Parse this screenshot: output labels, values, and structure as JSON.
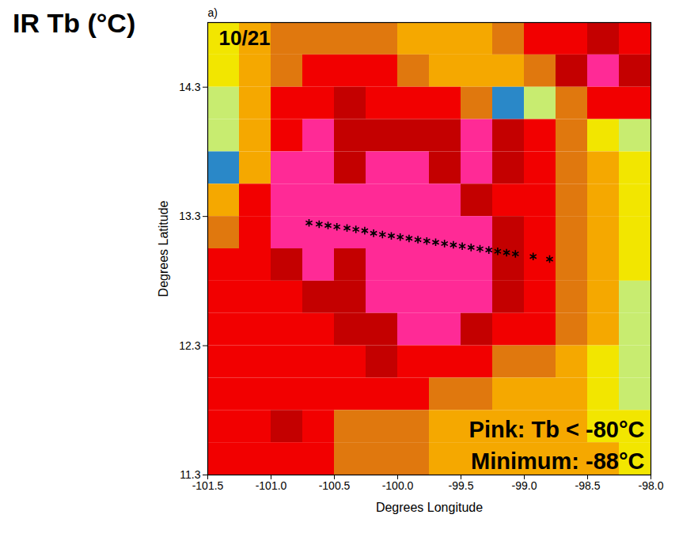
{
  "chart_data": {
    "type": "heatmap",
    "title": "IR Tb (°C)",
    "panel_label": "a)",
    "date_label": "10/21",
    "xlabel": "Degrees Longitude",
    "ylabel": "Degrees Latitude",
    "xlim": [
      -101.5,
      -98.0
    ],
    "ylim": [
      11.3,
      14.8
    ],
    "xticks": [
      -101.5,
      {
        "value": -101.0,
        "label": "-101.0"
      },
      -100.5,
      {
        "value": -100.0,
        "label": "-100.0"
      },
      -99.5,
      {
        "value": -99.0,
        "label": "-99.0"
      },
      -98.5,
      {
        "value": -98.0,
        "label": "-98.0"
      }
    ],
    "yticks": [
      11.3,
      12.3,
      13.3,
      14.3
    ],
    "lon": [
      -101.375,
      -101.125,
      -100.875,
      -100.625,
      -100.375,
      -100.125,
      -99.875,
      -99.625,
      -99.375,
      -99.125,
      -98.875,
      -98.625,
      -98.375,
      -98.125
    ],
    "lat": [
      14.675,
      14.425,
      14.175,
      13.925,
      13.675,
      13.425,
      13.175,
      12.925,
      12.675,
      12.425,
      12.175,
      11.925,
      11.675,
      11.425
    ],
    "tb": [
      [
        -42,
        -48,
        -55,
        -62,
        -62,
        -58,
        -52,
        -50,
        -52,
        -60,
        -66,
        -72,
        -76,
        -72
      ],
      [
        -40,
        -48,
        -56,
        -64,
        -66,
        -64,
        -58,
        -52,
        -50,
        -52,
        -62,
        -80,
        -84,
        -76
      ],
      [
        -32,
        -50,
        -64,
        -72,
        -74,
        -70,
        -68,
        -66,
        -55,
        -22,
        -35,
        -62,
        -66,
        -64
      ],
      [
        -32,
        -52,
        -66,
        -82,
        -78,
        -74,
        -76,
        -76,
        -84,
        -74,
        -64,
        -55,
        -45,
        -35
      ],
      [
        -22,
        -52,
        -81,
        -83,
        -76,
        -82,
        -82,
        -76,
        -83,
        -74,
        -66,
        -56,
        -50,
        -38
      ],
      [
        -50,
        -64,
        -82,
        -86,
        -83,
        -82,
        -86,
        -84,
        -76,
        -70,
        -64,
        -56,
        -48,
        -42
      ],
      [
        -62,
        -68,
        -84,
        -86,
        -84,
        -87,
        -88,
        -85,
        -82,
        -74,
        -66,
        -58,
        -50,
        -38
      ],
      [
        -64,
        -68,
        -76,
        -82,
        -78,
        -84,
        -86,
        -84,
        -82,
        -76,
        -68,
        -60,
        -52,
        -36
      ],
      [
        -66,
        -68,
        -72,
        -76,
        -78,
        -83,
        -85,
        -84,
        -82,
        -74,
        -66,
        -58,
        -50,
        -30
      ],
      [
        -66,
        -64,
        -68,
        -72,
        -74,
        -78,
        -82,
        -83,
        -76,
        -70,
        -64,
        -56,
        -48,
        -34
      ],
      [
        -72,
        -68,
        -66,
        -68,
        -72,
        -74,
        -72,
        -70,
        -68,
        -62,
        -56,
        -50,
        -40,
        -28
      ],
      [
        -68,
        -72,
        -66,
        -64,
        -66,
        -68,
        -66,
        -58,
        -55,
        -52,
        -50,
        -48,
        -40,
        -34
      ],
      [
        -68,
        -66,
        -74,
        -64,
        -62,
        -58,
        -55,
        -52,
        -50,
        -48,
        -50,
        -48,
        -45,
        -40
      ],
      [
        -66,
        -68,
        -70,
        -72,
        -62,
        -58,
        -55,
        -52,
        -50,
        -52,
        -50,
        -48,
        -46,
        -42
      ]
    ],
    "color_thresholds": [
      -80,
      -72,
      -62,
      -54,
      -45,
      -35,
      -25
    ],
    "color_range": [
      "#ff2a96",
      "#c40000",
      "#f20000",
      "#e0780e",
      "#f5a800",
      "#f2e600",
      "#c8ec70",
      "#2a88c8"
    ],
    "track": {
      "lon": [
        -100.7,
        -100.62,
        -100.55,
        -100.48,
        -100.4,
        -100.33,
        -100.26,
        -100.19,
        -100.12,
        -100.05,
        -99.98,
        -99.91,
        -99.84,
        -99.77,
        -99.7,
        -99.63,
        -99.56,
        -99.49,
        -99.42,
        -99.35,
        -99.28,
        -99.21,
        -99.14,
        -99.07,
        -98.93,
        -98.8
      ],
      "lat": [
        13.25,
        13.24,
        13.23,
        13.22,
        13.21,
        13.2,
        13.19,
        13.17,
        13.16,
        13.15,
        13.14,
        13.13,
        13.12,
        13.11,
        13.1,
        13.09,
        13.08,
        13.07,
        13.06,
        13.05,
        13.04,
        13.03,
        13.02,
        13.01,
        12.99,
        12.97
      ],
      "marker": "asterisk",
      "color": "#000000"
    },
    "annotations": [
      "Pink: Tb < -80°C",
      "Minimum: -88°C"
    ]
  }
}
